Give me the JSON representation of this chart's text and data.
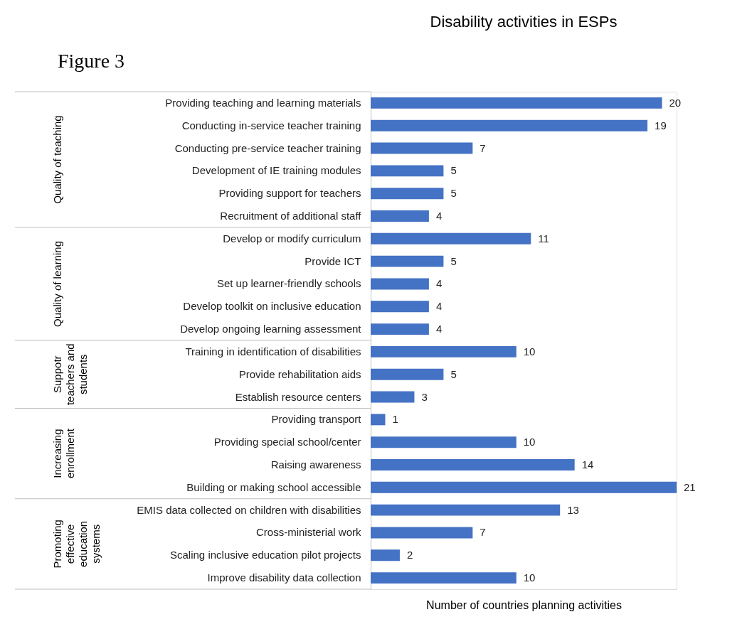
{
  "chart_data": {
    "type": "bar",
    "orientation": "horizontal",
    "title": "Disability activities in ESPs",
    "xlabel": "Number of countries planning activities",
    "data_labels": true,
    "grid": false,
    "categories": [
      "Providing teaching and learning materials",
      "Conducting in-service teacher training",
      "Conducting pre-service teacher training",
      "Development of IE training modules",
      "Providing support for teachers",
      "Recruitment of additional staff",
      "Develop or modify curriculum",
      "Provide ICT",
      "Set up learner-friendly schools",
      "Develop toolkit on inclusive education",
      "Develop ongoing learning assessment",
      "Training in identification of disabilities",
      "Provide rehabilitation aids",
      "Establish resource centers",
      "Providing transport",
      "Providing special school/center",
      "Raising awareness",
      "Building or making school accessible",
      "EMIS data collected on children with disabilities",
      "Cross-ministerial work",
      "Scaling inclusive education pilot projects",
      "Improve disability data collection"
    ],
    "series": [
      {
        "color": "#4472c4",
        "values": [
          20,
          19,
          7,
          5,
          5,
          4,
          11,
          5,
          4,
          4,
          4,
          10,
          5,
          3,
          1,
          10,
          14,
          21,
          13,
          7,
          2,
          10
        ]
      }
    ],
    "annotations": [
      "Figure 3",
      "Quality of teaching",
      "Quality of learning",
      "Suppotr teachers and students",
      "Increasing enrollment",
      "Promoting effective education systems"
    ]
  }
}
